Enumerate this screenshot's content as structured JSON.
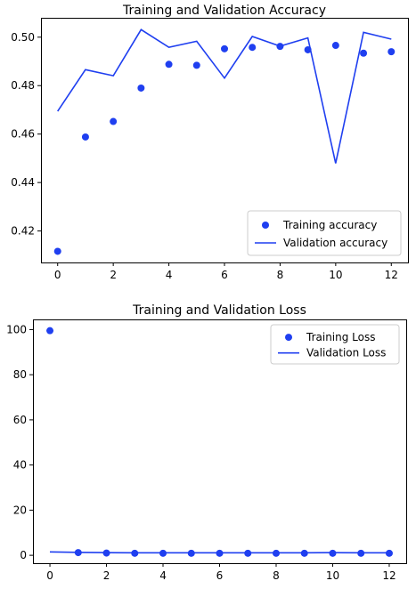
{
  "chart_data": [
    {
      "type": "line",
      "title": "Training and Validation Accuracy",
      "xlabel": "",
      "ylabel": "",
      "x": [
        0,
        1,
        2,
        3,
        4,
        5,
        6,
        7,
        8,
        9,
        10,
        11,
        12
      ],
      "xlim": [
        -0.6,
        12.6
      ],
      "ylim": [
        0.407,
        0.508
      ],
      "xticks": [
        0,
        2,
        4,
        6,
        8,
        10,
        12
      ],
      "yticks": [
        0.42,
        0.44,
        0.46,
        0.48,
        0.5
      ],
      "xtick_labels": [
        "0",
        "2",
        "4",
        "6",
        "8",
        "10",
        "12"
      ],
      "ytick_labels": [
        "0.42",
        "0.44",
        "0.46",
        "0.48",
        "0.50"
      ],
      "grid": false,
      "legend_position": "lower-right",
      "color": "#1f3ff0",
      "series": [
        {
          "name": "Training accuracy",
          "style": "points",
          "values": [
            0.4116,
            0.4588,
            0.4652,
            0.479,
            0.4888,
            0.4884,
            0.4952,
            0.4958,
            0.4962,
            0.4948,
            0.4966,
            0.4934,
            0.494
          ]
        },
        {
          "name": "Validation accuracy",
          "style": "line",
          "values": [
            0.4694,
            0.4866,
            0.4841,
            0.5031,
            0.4958,
            0.4983,
            0.4831,
            0.5003,
            0.4963,
            0.4997,
            0.4479,
            0.502,
            0.4992
          ]
        }
      ]
    },
    {
      "type": "line",
      "title": "Training and Validation Loss",
      "xlabel": "",
      "ylabel": "",
      "x": [
        0,
        1,
        2,
        3,
        4,
        5,
        6,
        7,
        8,
        9,
        10,
        11,
        12
      ],
      "xlim": [
        -0.6,
        12.6
      ],
      "ylim": [
        -3.5,
        104.5
      ],
      "xticks": [
        0,
        2,
        4,
        6,
        8,
        10,
        12
      ],
      "yticks": [
        0,
        20,
        40,
        60,
        80,
        100
      ],
      "xtick_labels": [
        "0",
        "2",
        "4",
        "6",
        "8",
        "10",
        "12"
      ],
      "ytick_labels": [
        "0",
        "20",
        "40",
        "60",
        "80",
        "100"
      ],
      "grid": false,
      "legend_position": "upper-right",
      "color": "#1f3ff0",
      "series": [
        {
          "name": "Training Loss",
          "style": "points",
          "values": [
            99.5,
            1.2,
            1.0,
            0.9,
            0.9,
            0.9,
            0.9,
            0.9,
            0.9,
            0.9,
            0.9,
            0.9,
            0.9
          ]
        },
        {
          "name": "Validation Loss",
          "style": "line",
          "values": [
            1.5,
            1.3,
            1.2,
            1.1,
            1.1,
            1.1,
            1.1,
            1.1,
            1.1,
            1.1,
            1.2,
            1.1,
            1.1
          ]
        }
      ]
    }
  ]
}
